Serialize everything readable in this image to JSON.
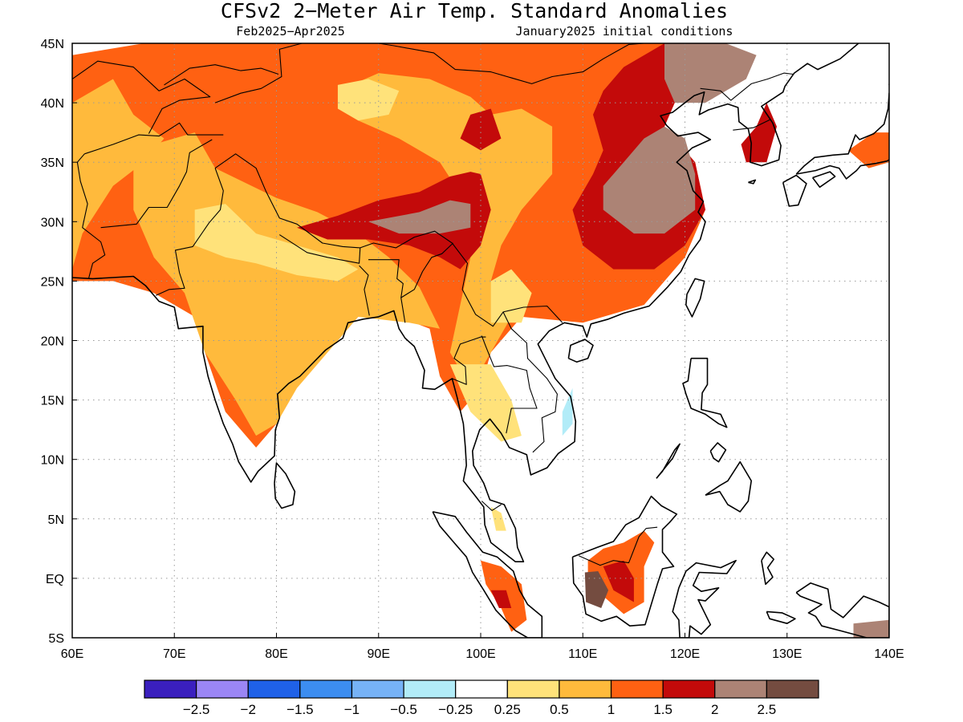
{
  "title": "CFSv2 2−Meter Air Temp. Standard Anomalies",
  "period": "Feb2025−Apr2025",
  "initial_conditions": "January2025 initial conditions",
  "map": {
    "lon_range": [
      60,
      140
    ],
    "lat_range": [
      -5,
      45
    ],
    "lon_ticks": [
      {
        "value": 60,
        "label": "60E"
      },
      {
        "value": 70,
        "label": "70E"
      },
      {
        "value": 80,
        "label": "80E"
      },
      {
        "value": 90,
        "label": "90E"
      },
      {
        "value": 100,
        "label": "100E"
      },
      {
        "value": 110,
        "label": "110E"
      },
      {
        "value": 120,
        "label": "120E"
      },
      {
        "value": 130,
        "label": "130E"
      },
      {
        "value": 140,
        "label": "140E"
      }
    ],
    "lat_ticks": [
      {
        "value": 45,
        "label": "45N"
      },
      {
        "value": 40,
        "label": "40N"
      },
      {
        "value": 35,
        "label": "35N"
      },
      {
        "value": 30,
        "label": "30N"
      },
      {
        "value": 25,
        "label": "25N"
      },
      {
        "value": 20,
        "label": "20N"
      },
      {
        "value": 15,
        "label": "15N"
      },
      {
        "value": 10,
        "label": "10N"
      },
      {
        "value": 5,
        "label": "5N"
      },
      {
        "value": 0,
        "label": "EQ"
      },
      {
        "value": -5,
        "label": "5S"
      }
    ]
  },
  "colorbar": {
    "colors": [
      "#3a1fbe",
      "#9b86f5",
      "#1f61e8",
      "#3c8df0",
      "#76b2f6",
      "#b2ecf8",
      "#ffffff",
      "#ffe27a",
      "#ffba3c",
      "#ff6112",
      "#c30a0a",
      "#ac8375",
      "#744c40"
    ],
    "labels": [
      "−2.5",
      "−2",
      "−1.5",
      "−1",
      "−0.5",
      "−0.25",
      "0.25",
      "0.5",
      "1",
      "1.5",
      "2",
      "2.5"
    ]
  },
  "anomaly_regions": [
    {
      "level": 1.5,
      "color": "#ff6112",
      "points": [
        [
          60,
          44
        ],
        [
          67,
          45
        ],
        [
          100,
          45
        ],
        [
          118,
          45
        ],
        [
          120,
          42
        ],
        [
          118,
          38
        ],
        [
          121,
          35
        ],
        [
          122,
          31
        ],
        [
          120,
          27
        ],
        [
          116,
          23
        ],
        [
          110,
          21.5
        ],
        [
          104,
          22
        ],
        [
          101,
          19
        ],
        [
          100,
          16
        ],
        [
          98,
          14
        ],
        [
          96,
          17
        ],
        [
          95,
          21
        ],
        [
          92,
          22
        ],
        [
          88,
          22
        ],
        [
          86,
          20
        ],
        [
          82,
          17
        ],
        [
          80,
          13
        ],
        [
          78,
          11
        ],
        [
          75,
          14
        ],
        [
          73,
          19
        ],
        [
          72,
          22
        ],
        [
          68,
          24
        ],
        [
          64,
          25
        ],
        [
          60,
          25
        ]
      ]
    },
    {
      "level": 1,
      "color": "#ffba3c",
      "points": [
        [
          60,
          40
        ],
        [
          64,
          42
        ],
        [
          66,
          39
        ],
        [
          69,
          37
        ],
        [
          67,
          35
        ],
        [
          64,
          33
        ],
        [
          61,
          29
        ],
        [
          60,
          26
        ]
      ]
    },
    {
      "level": 1,
      "color": "#ffba3c",
      "points": [
        [
          66,
          36
        ],
        [
          72,
          37.5
        ],
        [
          74,
          34.5
        ],
        [
          80,
          32
        ],
        [
          84,
          30.8
        ],
        [
          88,
          29
        ],
        [
          91,
          27
        ],
        [
          94,
          24.5
        ],
        [
          96,
          21
        ],
        [
          93,
          21.5
        ],
        [
          88,
          22
        ],
        [
          86,
          20
        ],
        [
          82,
          16
        ],
        [
          80,
          13
        ],
        [
          78,
          12
        ],
        [
          76,
          15
        ],
        [
          73,
          19
        ],
        [
          71,
          24
        ],
        [
          68,
          27
        ],
        [
          66,
          31
        ]
      ]
    },
    {
      "level": 1,
      "color": "#ffba3c",
      "points": [
        [
          86,
          41
        ],
        [
          90,
          42.5
        ],
        [
          95,
          42
        ],
        [
          99,
          40.5
        ],
        [
          101,
          39
        ],
        [
          104,
          39.5
        ],
        [
          107,
          38
        ],
        [
          107,
          34
        ],
        [
          104,
          31
        ],
        [
          102,
          28
        ],
        [
          101,
          25
        ],
        [
          103,
          22
        ],
        [
          101,
          19
        ],
        [
          99,
          16
        ],
        [
          97,
          19
        ],
        [
          98,
          23
        ],
        [
          99,
          27
        ],
        [
          99,
          31
        ],
        [
          96,
          35
        ],
        [
          92,
          37
        ],
        [
          88,
          38.5
        ]
      ]
    },
    {
      "level": 0.5,
      "color": "#ffe27a",
      "points": [
        [
          86,
          41.5
        ],
        [
          89,
          42
        ],
        [
          92,
          41
        ],
        [
          91,
          39
        ],
        [
          88,
          38.5
        ],
        [
          86,
          39.5
        ]
      ]
    },
    {
      "level": 0.5,
      "color": "#ffe27a",
      "points": [
        [
          72,
          31
        ],
        [
          75,
          31.5
        ],
        [
          78,
          29
        ],
        [
          82,
          28
        ],
        [
          86,
          27
        ],
        [
          88,
          26
        ],
        [
          86,
          25
        ],
        [
          82,
          25.5
        ],
        [
          78,
          26.5
        ],
        [
          75,
          27
        ],
        [
          72,
          28
        ]
      ]
    },
    {
      "level": 0.5,
      "color": "#ffe27a",
      "points": [
        [
          101,
          25
        ],
        [
          103,
          26
        ],
        [
          105,
          24
        ],
        [
          104,
          21.5
        ],
        [
          101,
          21.5
        ]
      ]
    },
    {
      "level": 0.5,
      "color": "#ffe27a",
      "points": [
        [
          97,
          18
        ],
        [
          101,
          18
        ],
        [
          103,
          15
        ],
        [
          104,
          12
        ],
        [
          102,
          11.5
        ],
        [
          99,
          14
        ],
        [
          98,
          16
        ]
      ]
    },
    {
      "level": 2,
      "color": "#c30a0a",
      "points": [
        [
          82,
          29.5
        ],
        [
          86,
          30.5
        ],
        [
          90,
          31.8
        ],
        [
          94,
          32.5
        ],
        [
          97,
          33.8
        ],
        [
          99,
          34.2
        ],
        [
          100,
          34
        ],
        [
          101,
          31
        ],
        [
          100,
          28
        ],
        [
          98,
          26
        ],
        [
          96,
          27
        ],
        [
          93,
          28
        ],
        [
          89,
          28.5
        ],
        [
          85,
          28.5
        ]
      ]
    },
    {
      "level": 2,
      "color": "#c30a0a",
      "points": [
        [
          109,
          31
        ],
        [
          111,
          34
        ],
        [
          112,
          36
        ],
        [
          111,
          39
        ],
        [
          112,
          41
        ],
        [
          114,
          43
        ],
        [
          118,
          45
        ],
        [
          120,
          42
        ],
        [
          118,
          38
        ],
        [
          121,
          35
        ],
        [
          122,
          31
        ],
        [
          120,
          28
        ],
        [
          117,
          26
        ],
        [
          113,
          26
        ],
        [
          110,
          28
        ]
      ]
    },
    {
      "level": 2,
      "color": "#c30a0a",
      "points": [
        [
          99,
          39
        ],
        [
          101,
          39.5
        ],
        [
          102,
          37
        ],
        [
          100,
          36
        ],
        [
          98,
          37
        ]
      ]
    },
    {
      "level": 2.5,
      "color": "#ac8375",
      "points": [
        [
          89,
          30
        ],
        [
          94,
          30.8
        ],
        [
          97,
          31.8
        ],
        [
          99,
          31.5
        ],
        [
          99,
          29.5
        ],
        [
          96,
          29
        ],
        [
          92,
          29
        ]
      ]
    },
    {
      "level": 2.5,
      "color": "#ac8375",
      "points": [
        [
          112,
          33
        ],
        [
          114,
          35
        ],
        [
          116,
          37
        ],
        [
          118,
          38
        ],
        [
          120,
          37
        ],
        [
          121,
          34
        ],
        [
          121,
          31
        ],
        [
          118,
          29
        ],
        [
          115,
          29
        ],
        [
          112,
          31
        ]
      ]
    },
    {
      "level": 2.5,
      "color": "#ac8375",
      "points": [
        [
          118,
          45
        ],
        [
          124,
          45
        ],
        [
          127,
          44
        ],
        [
          126,
          42
        ],
        [
          122,
          40
        ],
        [
          119,
          40
        ],
        [
          118,
          42
        ]
      ]
    },
    {
      "level": -0.25,
      "color": "#b2ecf8",
      "points": [
        [
          108,
          14
        ],
        [
          109,
          16
        ],
        [
          109,
          13
        ],
        [
          108,
          12
        ]
      ]
    },
    {
      "level": 1.5,
      "color": "#ff6112",
      "points": [
        [
          110.5,
          1.5
        ],
        [
          112,
          2.5
        ],
        [
          114,
          3
        ],
        [
          116,
          4
        ],
        [
          117,
          3
        ],
        [
          116,
          1
        ],
        [
          116,
          -2
        ],
        [
          114,
          -3
        ],
        [
          112,
          -1.5
        ],
        [
          110.5,
          0
        ]
      ]
    },
    {
      "level": 2,
      "color": "#c30a0a",
      "points": [
        [
          112,
          1
        ],
        [
          114,
          1.5
        ],
        [
          115,
          0
        ],
        [
          115,
          -2
        ],
        [
          113,
          -1
        ]
      ]
    },
    {
      "level": 2.5,
      "color": "#744c40",
      "points": [
        [
          110.2,
          0.5
        ],
        [
          111.5,
          0.6
        ],
        [
          112.5,
          -1
        ],
        [
          111.8,
          -2.5
        ],
        [
          110.3,
          -2
        ]
      ]
    },
    {
      "level": 1.5,
      "color": "#ff6112",
      "points": [
        [
          100,
          1.5
        ],
        [
          102,
          1
        ],
        [
          104,
          -0.5
        ],
        [
          104.5,
          -3.5
        ],
        [
          103,
          -4.5
        ],
        [
          102,
          -2.5
        ],
        [
          100.5,
          -0.5
        ]
      ]
    },
    {
      "level": 2,
      "color": "#c30a0a",
      "points": [
        [
          101,
          -1
        ],
        [
          102.5,
          -1
        ],
        [
          103,
          -2.5
        ],
        [
          101.8,
          -2.5
        ]
      ]
    },
    {
      "level": 1.5,
      "color": "#ff6112",
      "points": [
        [
          136,
          36
        ],
        [
          138.5,
          37.5
        ],
        [
          140,
          37.5
        ],
        [
          140,
          35
        ],
        [
          138,
          34.5
        ]
      ]
    },
    {
      "level": 2,
      "color": "#c30a0a",
      "points": [
        [
          125.5,
          36.5
        ],
        [
          127,
          38
        ],
        [
          128,
          40
        ],
        [
          129,
          38
        ],
        [
          128,
          35
        ],
        [
          126,
          35
        ]
      ]
    },
    {
      "level": 0.5,
      "color": "#ffe27a",
      "points": [
        [
          101,
          6
        ],
        [
          102,
          5.5
        ],
        [
          102.5,
          4
        ],
        [
          101.5,
          4
        ]
      ]
    },
    {
      "level": 2.5,
      "color": "#ac8375",
      "points": [
        [
          136.5,
          -3.8
        ],
        [
          140,
          -3.5
        ],
        [
          140,
          -5
        ],
        [
          136.5,
          -5
        ]
      ]
    }
  ]
}
